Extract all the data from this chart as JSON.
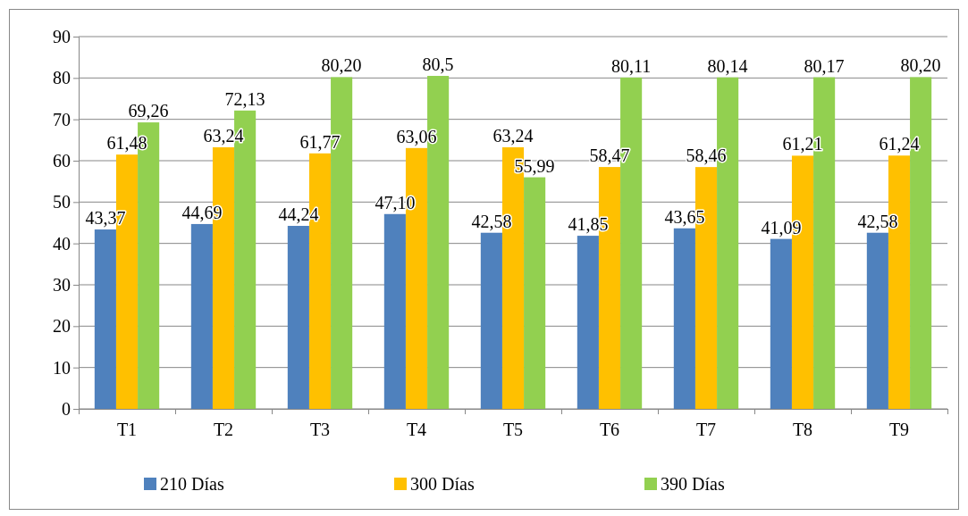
{
  "chart_data": {
    "type": "bar",
    "categories": [
      "T1",
      "T2",
      "T3",
      "T4",
      "T5",
      "T6",
      "T7",
      "T8",
      "T9"
    ],
    "series": [
      {
        "name": "210 Días",
        "color": "#4f81bd",
        "values": [
          43.37,
          44.69,
          44.24,
          47.1,
          42.58,
          41.85,
          43.65,
          41.09,
          42.58
        ],
        "value_labels": [
          "43,37",
          "44,69",
          "44,24",
          "47,10",
          "42,58",
          "41,85",
          "43,65",
          "41,09",
          "42,58"
        ]
      },
      {
        "name": "300 Días",
        "color": "#ffc000",
        "values": [
          61.48,
          63.24,
          61.77,
          63.06,
          63.24,
          58.47,
          58.46,
          61.21,
          61.24
        ],
        "value_labels": [
          "61,48",
          "63,24",
          "61,77",
          "63,06",
          "63,24",
          "58,47",
          "58,46",
          "61,21",
          "61,24"
        ]
      },
      {
        "name": "390 Días",
        "color": "#92d050",
        "values": [
          69.26,
          72.13,
          80.2,
          80.5,
          55.99,
          80.11,
          80.14,
          80.17,
          80.2
        ],
        "value_labels": [
          "69,26",
          "72,13",
          "80,20",
          "80,5",
          "55,99",
          "80,11",
          "80,14",
          "80,17",
          "80,20"
        ]
      }
    ],
    "ylim": [
      0,
      90
    ],
    "yticks": [
      0,
      10,
      20,
      30,
      40,
      50,
      60,
      70,
      80,
      90
    ],
    "grid": "y",
    "legend": "bottom"
  }
}
